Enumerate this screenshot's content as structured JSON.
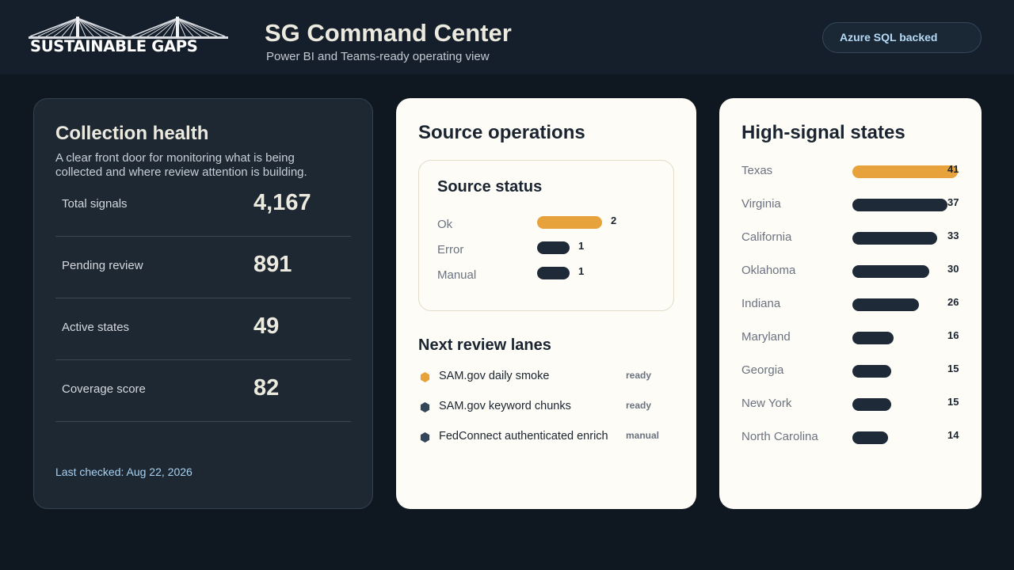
{
  "header": {
    "logo_text": "SUSTAINABLE GAPS",
    "title": "SG Command Center",
    "subtitle": "Power BI and Teams-ready operating view",
    "backend_badge": "Azure SQL backed"
  },
  "collection_health": {
    "title": "Collection health",
    "description": "A clear front door for monitoring what is being collected and where review attention is building.",
    "metrics": [
      {
        "label": "Total signals",
        "value": "4,167"
      },
      {
        "label": "Pending review",
        "value": "891"
      },
      {
        "label": "Active states",
        "value": "49"
      },
      {
        "label": "Coverage score",
        "value": "82"
      }
    ],
    "last_checked": "Last checked: Aug 22, 2026"
  },
  "source_operations": {
    "title": "Source operations",
    "status_title": "Source status",
    "statuses": [
      {
        "label": "Ok",
        "value": 2
      },
      {
        "label": "Error",
        "value": 1
      },
      {
        "label": "Manual",
        "value": 1
      }
    ],
    "lanes_title": "Next review lanes",
    "lanes": [
      {
        "name": "SAM.gov daily smoke",
        "tag": "ready"
      },
      {
        "name": "SAM.gov keyword chunks",
        "tag": "ready"
      },
      {
        "name": "FedConnect authenticated enrich",
        "tag": "manual"
      }
    ]
  },
  "states": {
    "title": "High-signal states",
    "rows": [
      {
        "name": "Texas",
        "value": 41
      },
      {
        "name": "Virginia",
        "value": 37
      },
      {
        "name": "California",
        "value": 33
      },
      {
        "name": "Oklahoma",
        "value": 30
      },
      {
        "name": "Indiana",
        "value": 26
      },
      {
        "name": "Maryland",
        "value": 16
      },
      {
        "name": "Georgia",
        "value": 15
      },
      {
        "name": "New York",
        "value": 15
      },
      {
        "name": "North Carolina",
        "value": 14
      }
    ]
  },
  "colors": {
    "accent": "#e8a23c",
    "bar_dark": "#1f2a38",
    "lane_dot_dark": "#334559"
  }
}
